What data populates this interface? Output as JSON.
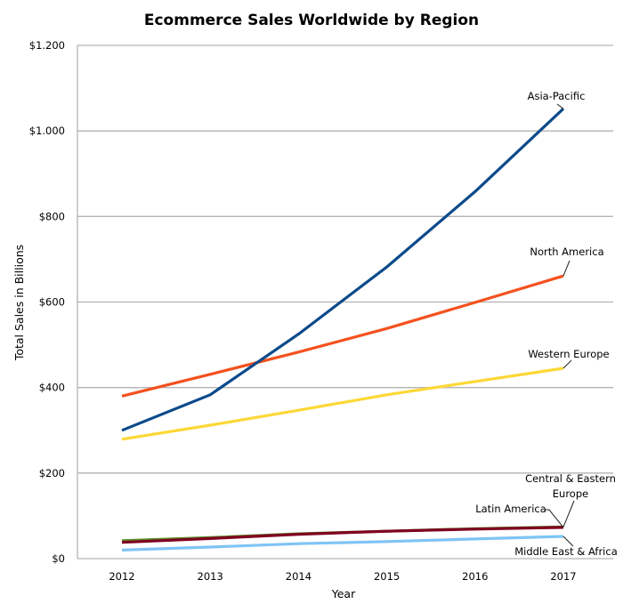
{
  "chart_data": {
    "type": "line",
    "title": "Ecommerce Sales Worldwide by Region",
    "xlabel": "Year",
    "ylabel": "Total Sales in Billions",
    "x": [
      "2012",
      "2013",
      "2014",
      "2015",
      "2016",
      "2017"
    ],
    "ylim": [
      0,
      1200
    ],
    "yticks": [
      0,
      200,
      400,
      600,
      800,
      1000,
      1200
    ],
    "ytick_labels": [
      "$0",
      "$200",
      "$400",
      "$600",
      "$800",
      "$1.000",
      "$1.200"
    ],
    "grid": true,
    "legend": "none (direct labels at line ends)",
    "series": [
      {
        "name": "Asia-Pacific",
        "color": "#0b4a8b",
        "values": [
          300,
          383,
          525,
          682,
          858,
          1052
        ]
      },
      {
        "name": "North America",
        "color": "#f4511e",
        "values": [
          380,
          431,
          483,
          538,
          599,
          661
        ]
      },
      {
        "name": "Western Europe",
        "color": "#fdd835",
        "values": [
          279,
          312,
          347,
          383,
          414,
          445
        ]
      },
      {
        "name": "Central & Eastern Europe",
        "color": "#5a8f29",
        "values": [
          42,
          49,
          58,
          64,
          70,
          74
        ]
      },
      {
        "name": "Latin America",
        "color": "#800020",
        "values": [
          38,
          47,
          57,
          64,
          69,
          73
        ]
      },
      {
        "name": "Middle East & Africa",
        "color": "#7fc4f5",
        "values": [
          20,
          27,
          35,
          40,
          46,
          52
        ]
      }
    ],
    "annotations": [
      {
        "series": "Asia-Pacific",
        "lines": [
          "Asia-Pacific"
        ]
      },
      {
        "series": "North America",
        "lines": [
          "North America"
        ]
      },
      {
        "series": "Western Europe",
        "lines": [
          "Western Europe"
        ]
      },
      {
        "series": "Central & Eastern Europe",
        "lines": [
          "Central & Eastern",
          "Europe"
        ]
      },
      {
        "series": "Latin America",
        "lines": [
          "Latin America"
        ]
      },
      {
        "series": "Middle East & Africa",
        "lines": [
          "Middle East & Africa"
        ]
      }
    ]
  }
}
